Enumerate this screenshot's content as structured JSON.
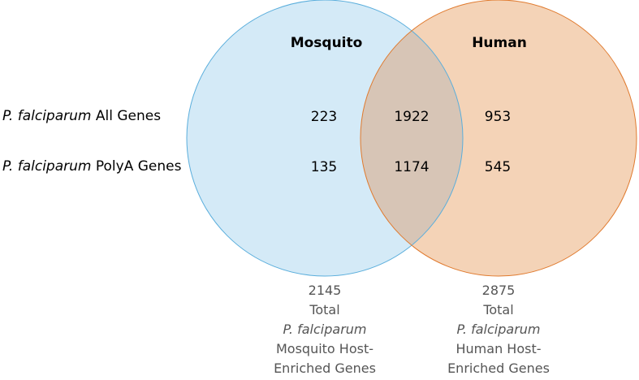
{
  "sets": {
    "mosquito": {
      "title": "Mosquito",
      "fill": "#d4eaf7",
      "stroke": "#5aaedc"
    },
    "human": {
      "title": "Human",
      "fill": "#f4d3b7",
      "stroke": "#e07a2e"
    },
    "overlap_fill": "#d7c5b6"
  },
  "rows": [
    {
      "species": "P. falciparum",
      "label": "All Genes",
      "mosquito_only": "223",
      "both": "1922",
      "human_only": "953"
    },
    {
      "species": "P. falciparum",
      "label": "PolyA Genes",
      "mosquito_only": "135",
      "both": "1174",
      "human_only": "545"
    }
  ],
  "footers": {
    "mosquito": {
      "count": "2145",
      "total": "Total",
      "species": "P. falciparum",
      "line1": "Mosquito Host-",
      "line2": "Enriched Genes"
    },
    "human": {
      "count": "2875",
      "total": "Total",
      "species": "P. falciparum",
      "line1": "Human Host-",
      "line2": "Enriched Genes"
    }
  }
}
